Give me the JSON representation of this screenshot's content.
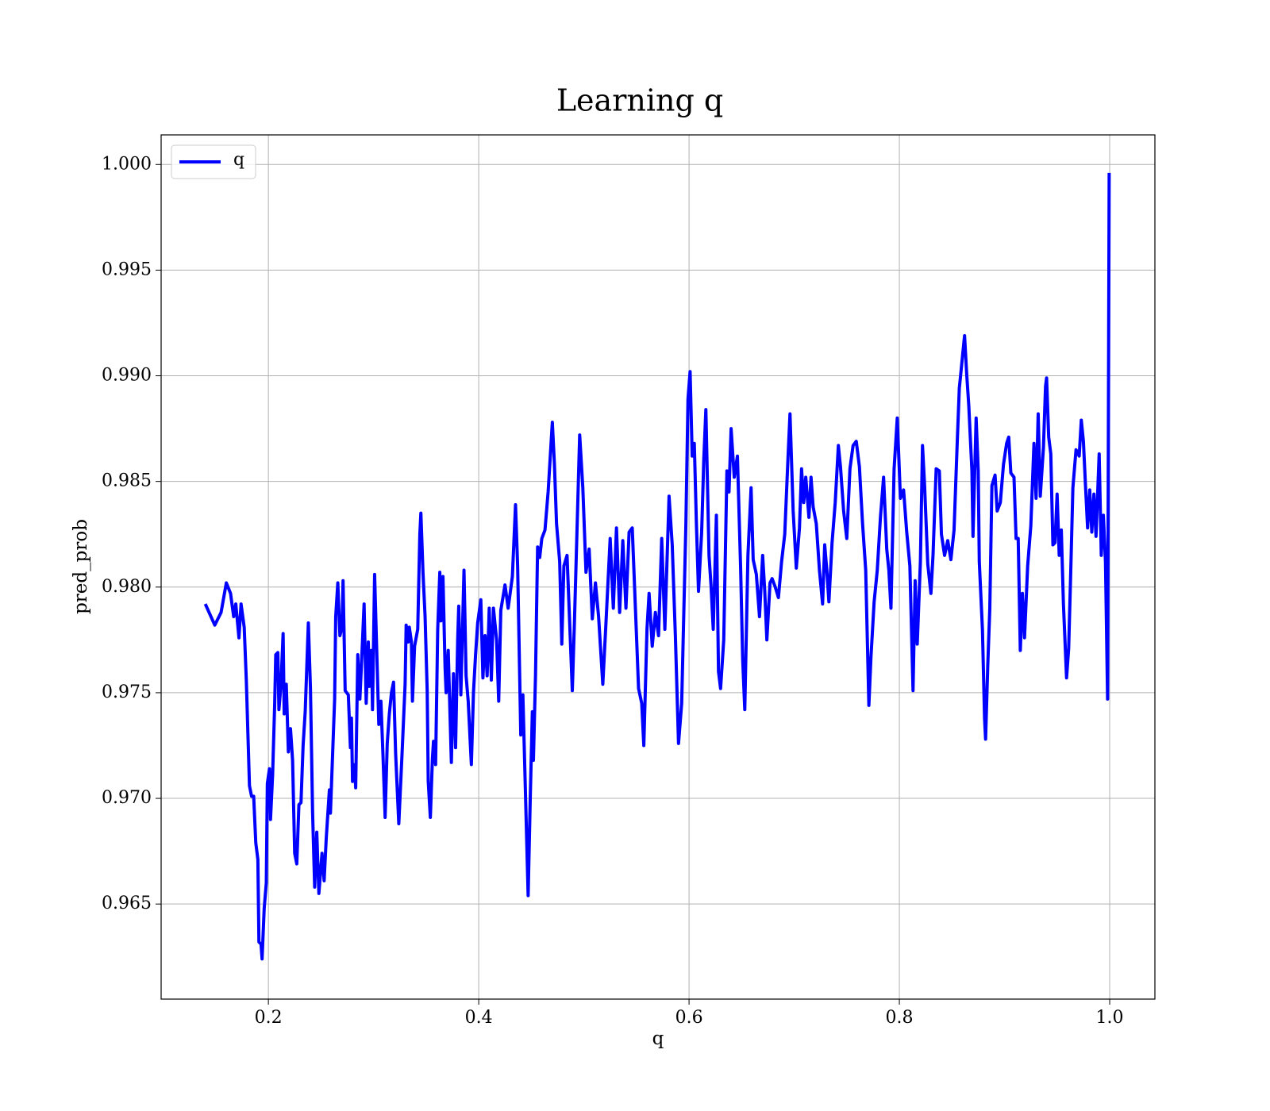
{
  "chart_data": {
    "type": "line",
    "title": "Learning q",
    "xlabel": "q",
    "ylabel": "pred_prob",
    "x": [
      0.14,
      0.149,
      0.155,
      0.16,
      0.164,
      0.167,
      0.169,
      0.172,
      0.174,
      0.177,
      0.179,
      0.182,
      0.184,
      0.186,
      0.188,
      0.19,
      0.191,
      0.193,
      0.194,
      0.196,
      0.198,
      0.199,
      0.201,
      0.202,
      0.204,
      0.206,
      0.207,
      0.209,
      0.21,
      0.212,
      0.214,
      0.215,
      0.217,
      0.219,
      0.221,
      0.223,
      0.225,
      0.227,
      0.229,
      0.231,
      0.233,
      0.235,
      0.238,
      0.24,
      0.242,
      0.244,
      0.246,
      0.248,
      0.251,
      0.253,
      0.255,
      0.258,
      0.259,
      0.261,
      0.263,
      0.264,
      0.266,
      0.268,
      0.27,
      0.271,
      0.273,
      0.276,
      0.278,
      0.279,
      0.28,
      0.282,
      0.283,
      0.285,
      0.287,
      0.289,
      0.291,
      0.293,
      0.295,
      0.296,
      0.298,
      0.299,
      0.301,
      0.303,
      0.305,
      0.307,
      0.309,
      0.311,
      0.313,
      0.315,
      0.317,
      0.319,
      0.321,
      0.324,
      0.327,
      0.33,
      0.331,
      0.333,
      0.334,
      0.336,
      0.337,
      0.339,
      0.342,
      0.344,
      0.345,
      0.347,
      0.349,
      0.351,
      0.352,
      0.354,
      0.356,
      0.357,
      0.359,
      0.361,
      0.363,
      0.364,
      0.366,
      0.368,
      0.369,
      0.371,
      0.374,
      0.376,
      0.378,
      0.38,
      0.381,
      0.383,
      0.386,
      0.388,
      0.39,
      0.393,
      0.395,
      0.397,
      0.399,
      0.402,
      0.404,
      0.406,
      0.408,
      0.41,
      0.412,
      0.414,
      0.417,
      0.419,
      0.421,
      0.425,
      0.428,
      0.432,
      0.435,
      0.437,
      0.44,
      0.442,
      0.447,
      0.449,
      0.451,
      0.452,
      0.454,
      0.456,
      0.458,
      0.46,
      0.463,
      0.466,
      0.47,
      0.472,
      0.474,
      0.477,
      0.479,
      0.481,
      0.484,
      0.489,
      0.491,
      0.496,
      0.499,
      0.502,
      0.505,
      0.508,
      0.511,
      0.514,
      0.518,
      0.521,
      0.525,
      0.528,
      0.531,
      0.534,
      0.537,
      0.54,
      0.543,
      0.546,
      0.549,
      0.552,
      0.555,
      0.557,
      0.56,
      0.562,
      0.565,
      0.568,
      0.571,
      0.574,
      0.577,
      0.581,
      0.584,
      0.587,
      0.59,
      0.593,
      0.597,
      0.599,
      0.601,
      0.603,
      0.605,
      0.607,
      0.609,
      0.612,
      0.614,
      0.616,
      0.619,
      0.621,
      0.623,
      0.626,
      0.628,
      0.63,
      0.633,
      0.636,
      0.638,
      0.64,
      0.643,
      0.646,
      0.649,
      0.651,
      0.653,
      0.656,
      0.659,
      0.661,
      0.664,
      0.667,
      0.67,
      0.672,
      0.674,
      0.677,
      0.679,
      0.682,
      0.685,
      0.688,
      0.691,
      0.694,
      0.696,
      0.699,
      0.702,
      0.705,
      0.707,
      0.709,
      0.711,
      0.714,
      0.716,
      0.718,
      0.721,
      0.724,
      0.727,
      0.729,
      0.731,
      0.733,
      0.736,
      0.739,
      0.742,
      0.744,
      0.747,
      0.75,
      0.753,
      0.756,
      0.759,
      0.762,
      0.765,
      0.768,
      0.771,
      0.773,
      0.776,
      0.779,
      0.782,
      0.785,
      0.788,
      0.79,
      0.792,
      0.795,
      0.798,
      0.801,
      0.804,
      0.807,
      0.81,
      0.813,
      0.815,
      0.817,
      0.82,
      0.822,
      0.824,
      0.827,
      0.83,
      0.832,
      0.835,
      0.838,
      0.84,
      0.843,
      0.846,
      0.849,
      0.852,
      0.855,
      0.857,
      0.86,
      0.862,
      0.864,
      0.866,
      0.869,
      0.87,
      0.873,
      0.875,
      0.876,
      0.879,
      0.881,
      0.882,
      0.884,
      0.886,
      0.888,
      0.891,
      0.893,
      0.896,
      0.899,
      0.902,
      0.904,
      0.906,
      0.909,
      0.911,
      0.913,
      0.915,
      0.917,
      0.919,
      0.922,
      0.925,
      0.928,
      0.93,
      0.932,
      0.934,
      0.937,
      0.939,
      0.94,
      0.942,
      0.944,
      0.946,
      0.948,
      0.95,
      0.952,
      0.954,
      0.956,
      0.959,
      0.961,
      0.963,
      0.965,
      0.968,
      0.971,
      0.973,
      0.975,
      0.977,
      0.979,
      0.981,
      0.983,
      0.985,
      0.987,
      0.99,
      0.992,
      0.994,
      0.996,
      0.998,
      0.9995
    ],
    "series": [
      {
        "name": "q",
        "color": "#0000ff",
        "values": [
          0.9792,
          0.9782,
          0.9788,
          0.9802,
          0.9797,
          0.9786,
          0.9792,
          0.9776,
          0.9792,
          0.9781,
          0.9756,
          0.9706,
          0.9701,
          0.9701,
          0.9679,
          0.9671,
          0.9632,
          0.9631,
          0.9624,
          0.9648,
          0.966,
          0.9707,
          0.9714,
          0.969,
          0.9711,
          0.9745,
          0.9768,
          0.9769,
          0.9742,
          0.9754,
          0.9778,
          0.974,
          0.9754,
          0.9722,
          0.9733,
          0.9718,
          0.9674,
          0.9669,
          0.9697,
          0.9698,
          0.9725,
          0.9741,
          0.9783,
          0.9752,
          0.9694,
          0.9658,
          0.9684,
          0.9655,
          0.9674,
          0.9661,
          0.9681,
          0.9704,
          0.9693,
          0.972,
          0.9747,
          0.9786,
          0.9802,
          0.9777,
          0.9781,
          0.9803,
          0.9751,
          0.9749,
          0.9724,
          0.9738,
          0.9708,
          0.9716,
          0.9705,
          0.9768,
          0.9747,
          0.9769,
          0.9792,
          0.9745,
          0.9774,
          0.9753,
          0.977,
          0.9742,
          0.9806,
          0.977,
          0.9735,
          0.9746,
          0.972,
          0.9691,
          0.9726,
          0.974,
          0.975,
          0.9755,
          0.9721,
          0.9688,
          0.972,
          0.9754,
          0.9782,
          0.9774,
          0.9781,
          0.9774,
          0.9746,
          0.9772,
          0.978,
          0.9825,
          0.9835,
          0.9807,
          0.9786,
          0.9751,
          0.9708,
          0.9691,
          0.9719,
          0.9727,
          0.9716,
          0.978,
          0.9807,
          0.9784,
          0.9805,
          0.9762,
          0.975,
          0.977,
          0.9717,
          0.9759,
          0.9724,
          0.9775,
          0.9791,
          0.9749,
          0.9808,
          0.9758,
          0.9746,
          0.9716,
          0.975,
          0.9768,
          0.9783,
          0.9794,
          0.9757,
          0.9777,
          0.9758,
          0.979,
          0.9756,
          0.979,
          0.9775,
          0.9746,
          0.9789,
          0.9801,
          0.979,
          0.9805,
          0.9839,
          0.981,
          0.973,
          0.9749,
          0.9654,
          0.97,
          0.9741,
          0.9718,
          0.9758,
          0.9819,
          0.9814,
          0.9823,
          0.9827,
          0.9845,
          0.9878,
          0.9858,
          0.983,
          0.9812,
          0.9773,
          0.981,
          0.9815,
          0.9751,
          0.9783,
          0.9872,
          0.9847,
          0.9807,
          0.9818,
          0.9785,
          0.9802,
          0.9786,
          0.9754,
          0.9783,
          0.9823,
          0.979,
          0.9828,
          0.9788,
          0.9822,
          0.979,
          0.9826,
          0.9828,
          0.979,
          0.9752,
          0.9745,
          0.9725,
          0.978,
          0.9797,
          0.9772,
          0.9788,
          0.9777,
          0.9823,
          0.978,
          0.9843,
          0.982,
          0.9777,
          0.9726,
          0.9745,
          0.983,
          0.9889,
          0.9902,
          0.9862,
          0.9868,
          0.983,
          0.9798,
          0.9826,
          0.986,
          0.9884,
          0.9815,
          0.98,
          0.978,
          0.9834,
          0.976,
          0.9752,
          0.9775,
          0.9855,
          0.9845,
          0.9875,
          0.9852,
          0.9862,
          0.981,
          0.9766,
          0.9742,
          0.9815,
          0.9847,
          0.9813,
          0.9806,
          0.9786,
          0.9815,
          0.9798,
          0.9775,
          0.9802,
          0.9804,
          0.98,
          0.9795,
          0.9812,
          0.9825,
          0.986,
          0.9882,
          0.9836,
          0.9809,
          0.9828,
          0.9856,
          0.984,
          0.9852,
          0.9833,
          0.9852,
          0.9838,
          0.983,
          0.9808,
          0.9792,
          0.982,
          0.9808,
          0.9793,
          0.9821,
          0.984,
          0.9867,
          0.9857,
          0.9836,
          0.9823,
          0.9856,
          0.9867,
          0.9869,
          0.9857,
          0.983,
          0.9808,
          0.9744,
          0.9767,
          0.9793,
          0.9808,
          0.9833,
          0.9852,
          0.9818,
          0.9808,
          0.979,
          0.9856,
          0.988,
          0.9842,
          0.9846,
          0.9826,
          0.981,
          0.9751,
          0.9803,
          0.9773,
          0.9812,
          0.9867,
          0.9848,
          0.9811,
          0.9797,
          0.9815,
          0.9856,
          0.9855,
          0.9825,
          0.9815,
          0.9822,
          0.9813,
          0.9827,
          0.9868,
          0.9894,
          0.9909,
          0.9919,
          0.9901,
          0.9886,
          0.9855,
          0.9824,
          0.988,
          0.9855,
          0.9812,
          0.978,
          0.9738,
          0.9728,
          0.9762,
          0.979,
          0.9848,
          0.9853,
          0.9836,
          0.984,
          0.9858,
          0.9868,
          0.9871,
          0.9854,
          0.9852,
          0.9823,
          0.9823,
          0.977,
          0.9797,
          0.9776,
          0.981,
          0.9829,
          0.9868,
          0.9842,
          0.9882,
          0.9843,
          0.9866,
          0.9895,
          0.9899,
          0.9871,
          0.9863,
          0.982,
          0.9821,
          0.9844,
          0.9815,
          0.9827,
          0.9792,
          0.9757,
          0.9771,
          0.9808,
          0.9847,
          0.9865,
          0.9862,
          0.9879,
          0.9869,
          0.9848,
          0.9828,
          0.9846,
          0.9826,
          0.9844,
          0.9824,
          0.9863,
          0.9815,
          0.9834,
          0.9812,
          0.9747,
          0.9996
        ]
      }
    ],
    "xlim": [
      0.098,
      1.043
    ],
    "ylim": [
      0.9605,
      1.0014
    ],
    "xticks": [
      0.2,
      0.4,
      0.6,
      0.8,
      {
        "value": 1,
        "label": "1.0"
      }
    ],
    "yticks": [
      0.965,
      {
        "value": 0.97,
        "label": "0.970"
      },
      0.975,
      {
        "value": 0.98,
        "label": "0.980"
      },
      0.985,
      {
        "value": 0.99,
        "label": "0.990"
      },
      0.995,
      {
        "value": 1,
        "label": "1.000"
      }
    ],
    "grid": true,
    "legend": "upper left"
  }
}
